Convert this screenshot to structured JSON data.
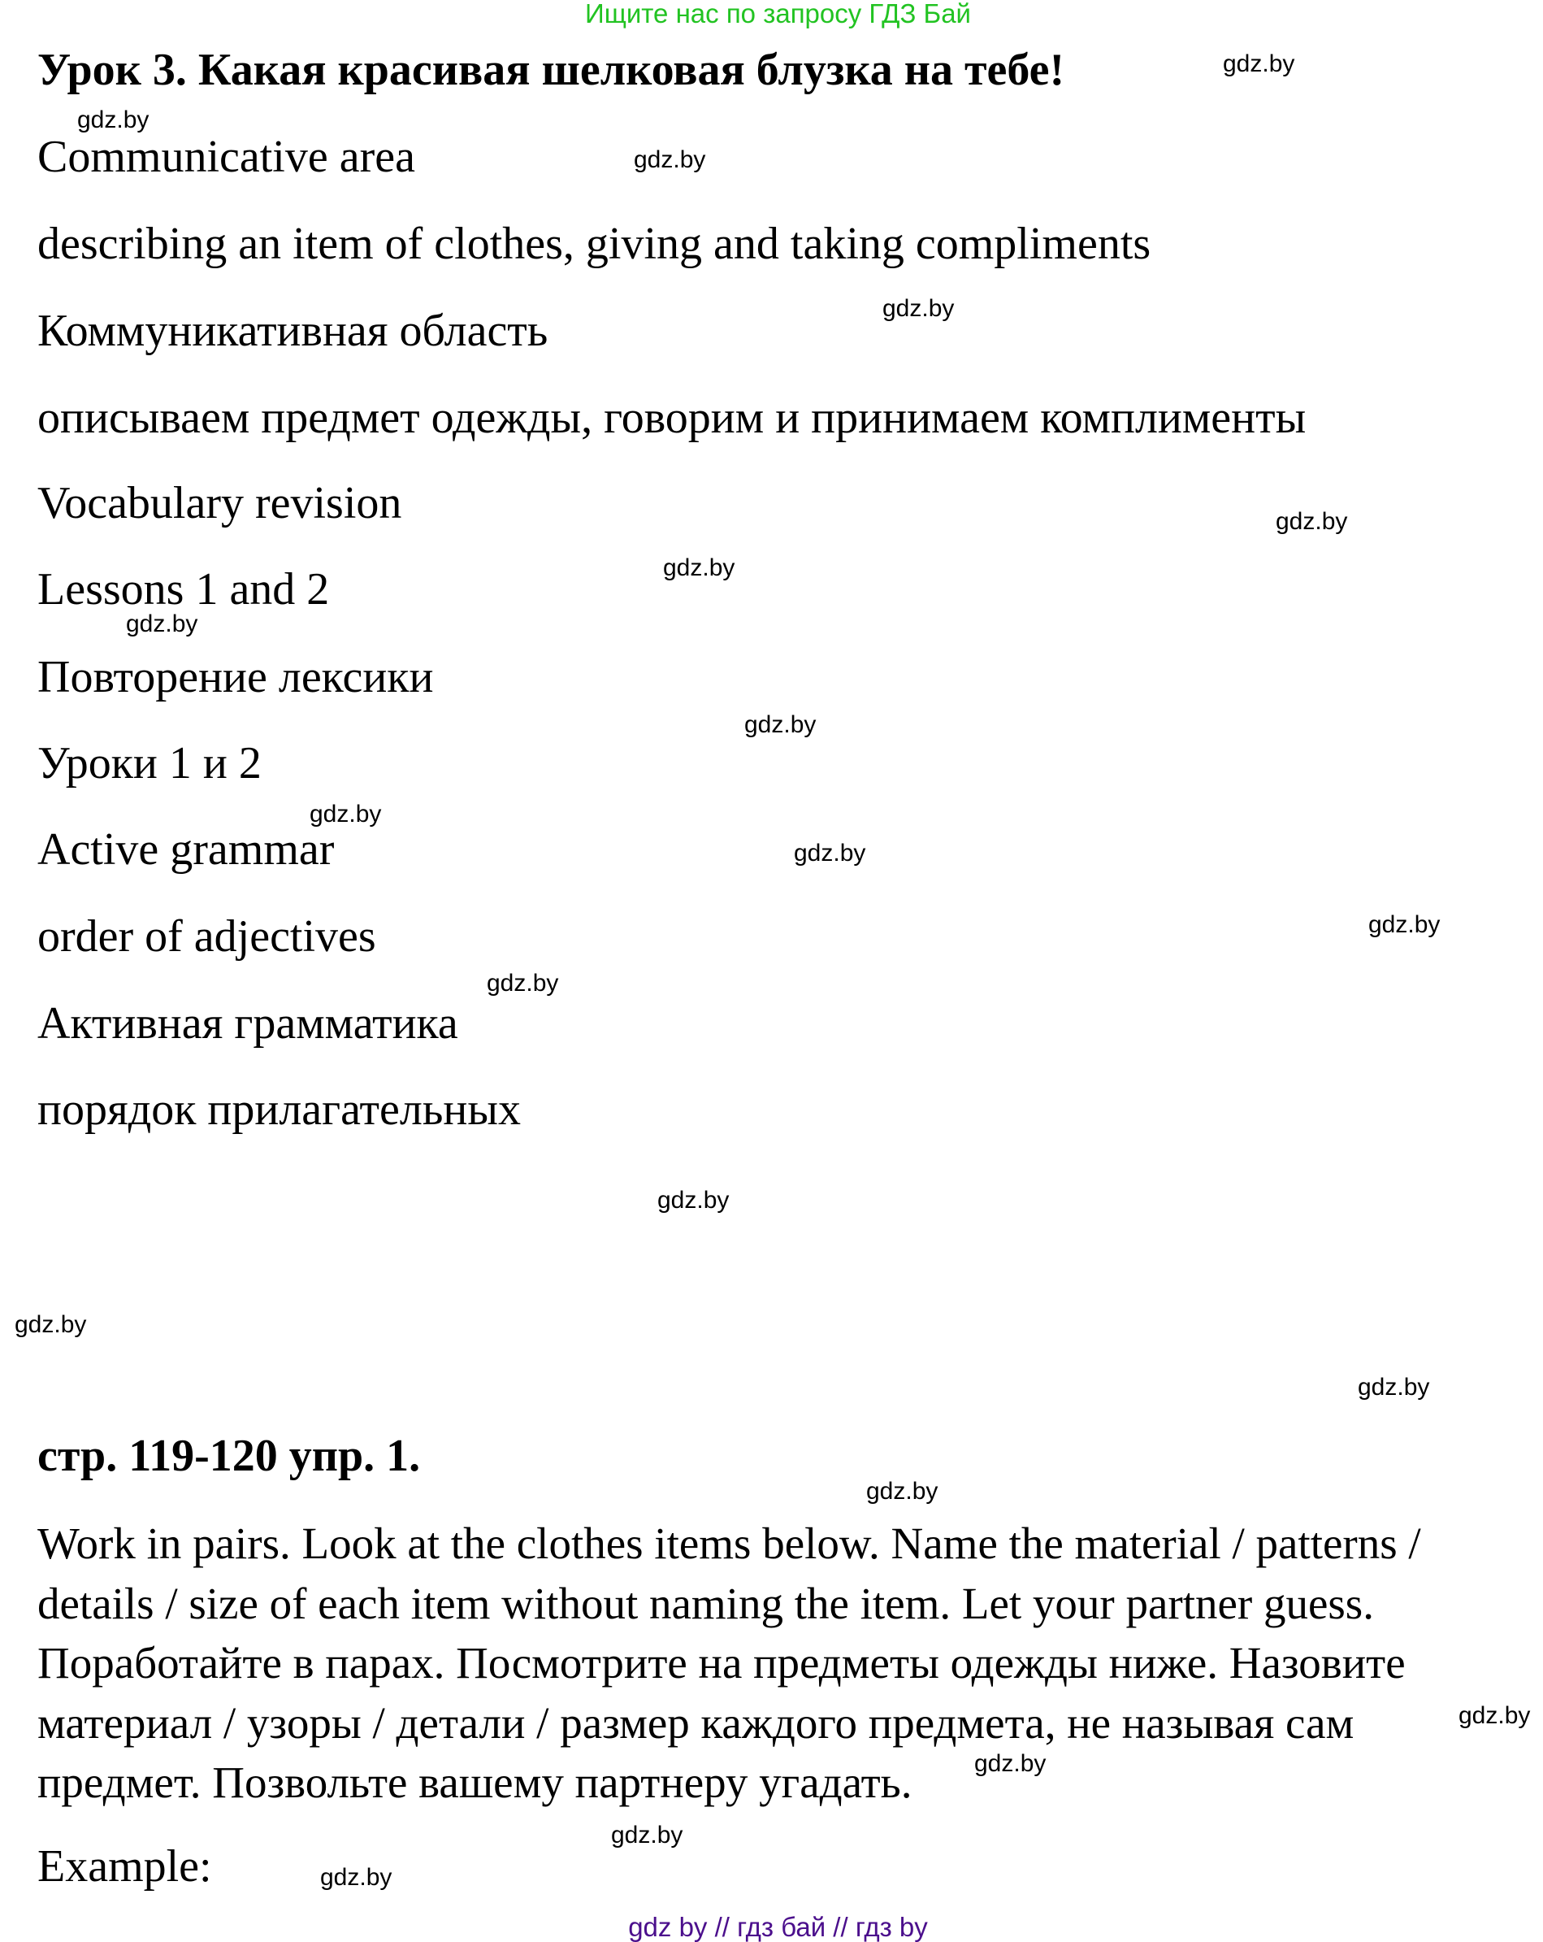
{
  "banner": {
    "text": "Ищите нас по запросу ГДЗ Бай",
    "color": "#22c322"
  },
  "lesson": {
    "title": "Урок 3. Какая красивая шелковая блузка на тебе!",
    "lines": [
      "Communicative area",
      "describing an item of clothes, giving and taking compliments",
      "Коммуникативная область",
      "описываем предмет одежды, говорим и принимаем комплименты",
      "Vocabulary revision",
      "Lessons 1 and 2",
      "Повторение лексики",
      "Уроки 1 и 2",
      "Active grammar",
      "order of adjectives",
      "Активная грамматика",
      "порядок прилагательных"
    ]
  },
  "exercise": {
    "title": "стр. 119-120 упр. 1.",
    "lines": [
      "Work in pairs. Look at the clothes items below. Name the material / patterns /",
      "details / size of each item without naming the item. Let your partner guess.",
      "Поработайте в парах. Посмотрите на предметы одежды ниже. Назовите",
      "материал / узоры / детали / размер каждого предмета, не называя сам",
      "предмет. Позвольте вашему партнеру угадать."
    ],
    "example_label": "Example:"
  },
  "watermark": "gdz.by",
  "footer": {
    "text": "gdz by  //  гдз бай  //  гдз by",
    "color": "#4b0f8c"
  }
}
